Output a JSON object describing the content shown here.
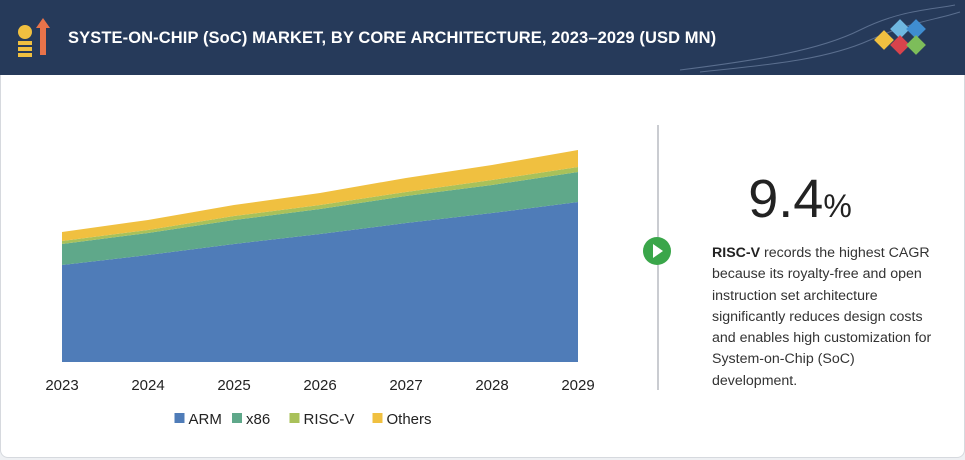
{
  "title": "SYSTE-ON-CHIP (SoC)  MARKET, BY CORE ARCHITECTURE, 2023–2029 (USD MN)",
  "chart_data": {
    "type": "stacked-area",
    "x": [
      2023,
      2024,
      2025,
      2026,
      2027,
      2028,
      2029
    ],
    "xlim": [
      2023,
      2029
    ],
    "ylim": [
      0,
      240
    ],
    "series": [
      {
        "name": "ARM",
        "color": "#4f7cb8",
        "values": [
          97,
          107,
          118,
          128,
          139,
          149,
          160
        ]
      },
      {
        "name": "x86",
        "color": "#5fa88a",
        "values": [
          21,
          22,
          24,
          25,
          27,
          28,
          30
        ]
      },
      {
        "name": "RISC-V",
        "color": "#a9c15a",
        "values": [
          3,
          3,
          4,
          4,
          4,
          5,
          5
        ]
      },
      {
        "name": "Others",
        "color": "#f0c040",
        "values": [
          9,
          10,
          11,
          12,
          14,
          15,
          17
        ]
      }
    ]
  },
  "highlight": {
    "value": "9.4",
    "unit": "%"
  },
  "description": {
    "term": "RISC-V",
    "text": " records the highest CAGR because its royalty-free and open instruction set architecture significantly reduces design costs and enables high customization for System-on-Chip (SoC) development."
  }
}
